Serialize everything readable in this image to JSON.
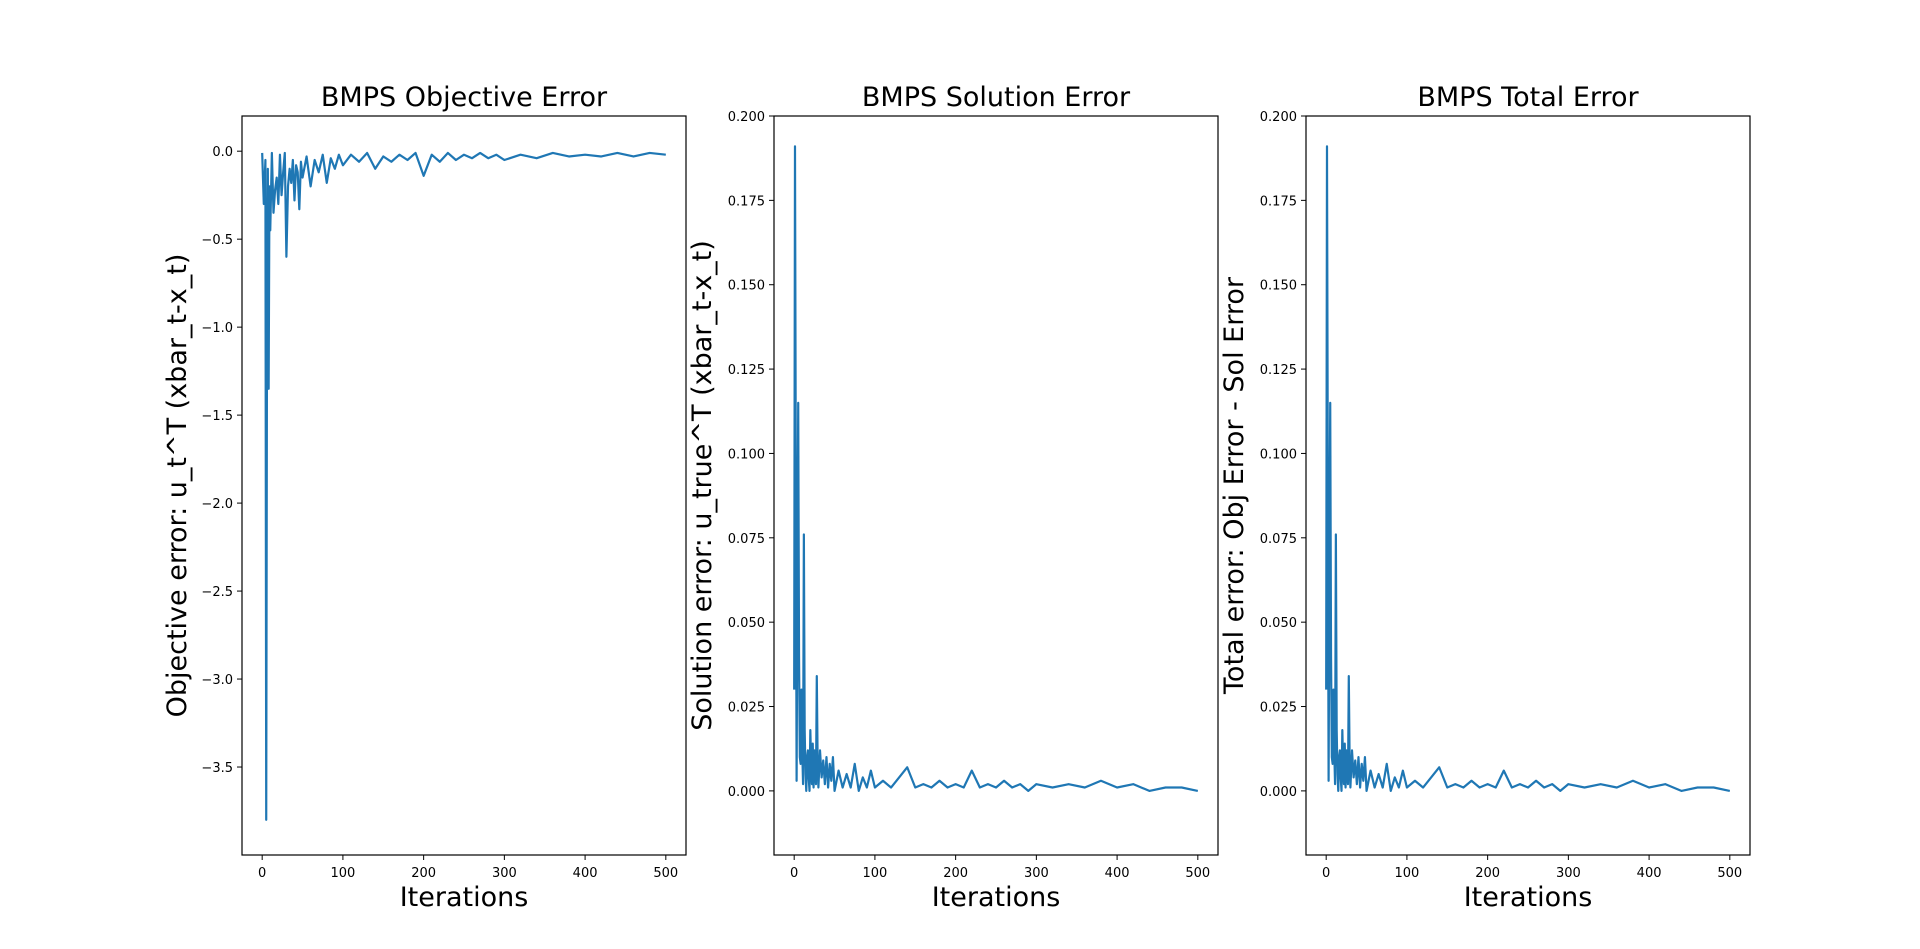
{
  "chart_data": [
    {
      "type": "line",
      "title": "BMPS Objective Error",
      "xlabel": "Iterations",
      "ylabel": "Objective error: u_t^T (xbar_t-x_t)",
      "xlim": [
        -25,
        525
      ],
      "ylim": [
        -4.0,
        0.2
      ],
      "xticks": [
        0,
        100,
        200,
        300,
        400,
        500
      ],
      "yticks": [
        0.0,
        -0.5,
        -1.0,
        -1.5,
        -2.0,
        -2.5,
        -3.0,
        -3.5
      ],
      "ytick_labels": [
        "0.0",
        "−0.5",
        "−1.0",
        "−1.5",
        "−2.0",
        "−2.5",
        "−3.0",
        "−3.5"
      ],
      "xtick_labels": [
        "0",
        "100",
        "200",
        "300",
        "400",
        "500"
      ],
      "grid": false,
      "series": [
        {
          "color": "#1f77b4",
          "x": [
            0,
            2,
            4,
            5,
            6,
            7,
            8,
            9,
            10,
            12,
            14,
            16,
            18,
            20,
            22,
            24,
            26,
            28,
            30,
            32,
            34,
            36,
            38,
            40,
            42,
            44,
            46,
            48,
            50,
            55,
            60,
            65,
            70,
            75,
            80,
            85,
            90,
            95,
            100,
            110,
            120,
            130,
            140,
            150,
            160,
            170,
            180,
            190,
            200,
            210,
            220,
            230,
            240,
            250,
            260,
            270,
            280,
            290,
            300,
            320,
            340,
            360,
            380,
            400,
            420,
            440,
            460,
            480,
            500
          ],
          "values": [
            -0.01,
            -0.3,
            -0.05,
            -3.8,
            -0.9,
            -0.1,
            -1.35,
            -0.2,
            -0.45,
            -0.01,
            -0.35,
            -0.22,
            -0.15,
            -0.3,
            -0.02,
            -0.25,
            -0.12,
            -0.01,
            -0.6,
            -0.2,
            -0.1,
            -0.18,
            -0.05,
            -0.28,
            -0.08,
            -0.12,
            -0.33,
            -0.06,
            -0.15,
            -0.03,
            -0.2,
            -0.05,
            -0.12,
            -0.02,
            -0.18,
            -0.04,
            -0.1,
            -0.02,
            -0.08,
            -0.02,
            -0.06,
            -0.01,
            -0.1,
            -0.03,
            -0.06,
            -0.02,
            -0.05,
            -0.01,
            -0.14,
            -0.02,
            -0.06,
            -0.01,
            -0.05,
            -0.02,
            -0.04,
            -0.01,
            -0.04,
            -0.02,
            -0.05,
            -0.02,
            -0.04,
            -0.01,
            -0.03,
            -0.02,
            -0.03,
            -0.01,
            -0.03,
            -0.01,
            -0.02
          ]
        }
      ]
    },
    {
      "type": "line",
      "title": "BMPS Solution Error",
      "xlabel": "Iterations",
      "ylabel": "Solution error: u_true^T (xbar_t-x_t)",
      "xlim": [
        -25,
        525
      ],
      "ylim": [
        -0.019,
        0.2
      ],
      "xticks": [
        0,
        100,
        200,
        300,
        400,
        500
      ],
      "yticks": [
        0.0,
        0.025,
        0.05,
        0.075,
        0.1,
        0.125,
        0.15,
        0.175,
        0.2
      ],
      "ytick_labels": [
        "0.000",
        "0.025",
        "0.050",
        "0.075",
        "0.100",
        "0.125",
        "0.150",
        "0.175",
        "0.200"
      ],
      "xtick_labels": [
        "0",
        "100",
        "200",
        "300",
        "400",
        "500"
      ],
      "grid": false,
      "series": [
        {
          "color": "#1f77b4",
          "x": [
            0,
            1,
            2,
            3,
            4,
            5,
            6,
            7,
            8,
            9,
            10,
            11,
            12,
            13,
            14,
            15,
            16,
            17,
            18,
            19,
            20,
            21,
            22,
            23,
            24,
            25,
            26,
            27,
            28,
            29,
            30,
            32,
            34,
            36,
            38,
            40,
            42,
            44,
            46,
            48,
            50,
            55,
            60,
            65,
            70,
            75,
            80,
            85,
            90,
            95,
            100,
            110,
            120,
            130,
            140,
            150,
            160,
            170,
            180,
            190,
            200,
            210,
            220,
            230,
            240,
            250,
            260,
            270,
            280,
            290,
            300,
            320,
            340,
            360,
            380,
            400,
            420,
            440,
            460,
            480,
            500
          ],
          "values": [
            0.03,
            0.191,
            0.095,
            0.003,
            0.062,
            0.115,
            0.04,
            0.01,
            0.008,
            0.03,
            0.012,
            0.002,
            0.076,
            0.018,
            0.005,
            0.0,
            0.01,
            0.012,
            0.004,
            0.0,
            0.018,
            0.008,
            0.002,
            0.014,
            0.001,
            0.012,
            0.006,
            0.002,
            0.034,
            0.01,
            0.001,
            0.012,
            0.004,
            0.009,
            0.002,
            0.01,
            0.001,
            0.008,
            0.003,
            0.01,
            0.0,
            0.006,
            0.001,
            0.005,
            0.001,
            0.008,
            0.0,
            0.004,
            0.001,
            0.006,
            0.001,
            0.003,
            0.001,
            0.004,
            0.007,
            0.001,
            0.002,
            0.001,
            0.003,
            0.001,
            0.002,
            0.001,
            0.006,
            0.001,
            0.002,
            0.001,
            0.003,
            0.001,
            0.002,
            0.0,
            0.002,
            0.001,
            0.002,
            0.001,
            0.003,
            0.001,
            0.002,
            0.0,
            0.001,
            0.001,
            0.0
          ]
        }
      ]
    },
    {
      "type": "line",
      "title": "BMPS Total Error",
      "xlabel": "Iterations",
      "ylabel": "Total error: Obj Error - Sol Error",
      "xlim": [
        -25,
        525
      ],
      "ylim": [
        -0.019,
        0.2
      ],
      "xticks": [
        0,
        100,
        200,
        300,
        400,
        500
      ],
      "yticks": [
        0.0,
        0.025,
        0.05,
        0.075,
        0.1,
        0.125,
        0.15,
        0.175,
        0.2
      ],
      "ytick_labels": [
        "0.000",
        "0.025",
        "0.050",
        "0.075",
        "0.100",
        "0.125",
        "0.150",
        "0.175",
        "0.200"
      ],
      "xtick_labels": [
        "0",
        "100",
        "200",
        "300",
        "400",
        "500"
      ],
      "grid": false,
      "series": [
        {
          "color": "#1f77b4",
          "x": [
            0,
            1,
            2,
            3,
            4,
            5,
            6,
            7,
            8,
            9,
            10,
            11,
            12,
            13,
            14,
            15,
            16,
            17,
            18,
            19,
            20,
            21,
            22,
            23,
            24,
            25,
            26,
            27,
            28,
            29,
            30,
            32,
            34,
            36,
            38,
            40,
            42,
            44,
            46,
            48,
            50,
            55,
            60,
            65,
            70,
            75,
            80,
            85,
            90,
            95,
            100,
            110,
            120,
            130,
            140,
            150,
            160,
            170,
            180,
            190,
            200,
            210,
            220,
            230,
            240,
            250,
            260,
            270,
            280,
            290,
            300,
            320,
            340,
            360,
            380,
            400,
            420,
            440,
            460,
            480,
            500
          ],
          "values": [
            0.03,
            0.191,
            0.095,
            0.003,
            0.062,
            0.115,
            0.04,
            0.01,
            0.008,
            0.03,
            0.012,
            0.002,
            0.076,
            0.018,
            0.005,
            0.0,
            0.01,
            0.012,
            0.004,
            0.0,
            0.018,
            0.008,
            0.002,
            0.014,
            0.001,
            0.012,
            0.006,
            0.002,
            0.034,
            0.01,
            0.001,
            0.012,
            0.004,
            0.009,
            0.002,
            0.01,
            0.001,
            0.008,
            0.003,
            0.01,
            0.0,
            0.006,
            0.001,
            0.005,
            0.001,
            0.008,
            0.0,
            0.004,
            0.001,
            0.006,
            0.001,
            0.003,
            0.001,
            0.004,
            0.007,
            0.001,
            0.002,
            0.001,
            0.003,
            0.001,
            0.002,
            0.001,
            0.006,
            0.001,
            0.002,
            0.001,
            0.003,
            0.001,
            0.002,
            0.0,
            0.002,
            0.001,
            0.002,
            0.001,
            0.003,
            0.001,
            0.002,
            0.0,
            0.001,
            0.001,
            0.0
          ]
        }
      ]
    }
  ]
}
